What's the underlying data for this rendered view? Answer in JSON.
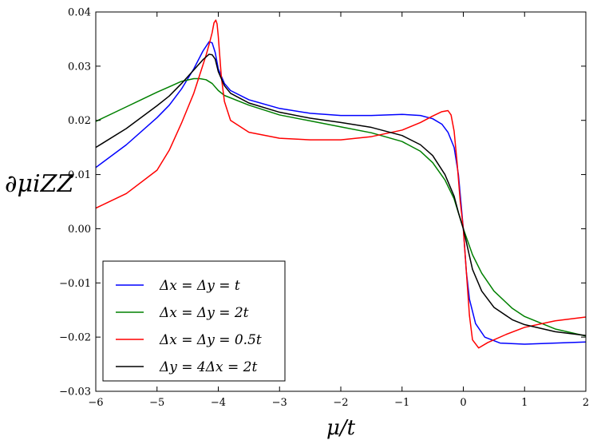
{
  "chart_data": {
    "type": "line",
    "xlabel": "μ/t",
    "ylabel": "∂μiZZ",
    "xlim": [
      -6,
      2
    ],
    "ylim": [
      -0.03,
      0.04
    ],
    "x_ticks": [
      -6,
      -5,
      -4,
      -3,
      -2,
      -1,
      0,
      1,
      2
    ],
    "x_tick_labels": [
      "−6",
      "−5",
      "−4",
      "−3",
      "−2",
      "−1",
      "0",
      "1",
      "2"
    ],
    "y_ticks": [
      -0.03,
      -0.02,
      -0.01,
      0.0,
      0.01,
      0.02,
      0.03,
      0.04
    ],
    "y_tick_labels": [
      "−0.03",
      "−0.02",
      "−0.01",
      "0.00",
      "0.01",
      "0.02",
      "0.03",
      "0.04"
    ],
    "grid": false,
    "legend_position": "bottom-left",
    "series": [
      {
        "name": "Δx = Δy = t",
        "color": "#0000ff",
        "x": [
          -6,
          -5.5,
          -5,
          -4.8,
          -4.6,
          -4.4,
          -4.25,
          -4.15,
          -4.1,
          -4.05,
          -4.0,
          -3.9,
          -3.8,
          -3.5,
          -3,
          -2.5,
          -2,
          -1.5,
          -1.0,
          -0.7,
          -0.5,
          -0.35,
          -0.25,
          -0.15,
          -0.08,
          0,
          0.05,
          0.1,
          0.2,
          0.35,
          0.6,
          1.0,
          1.5,
          2.0
        ],
        "y": [
          0.0113,
          0.0155,
          0.0205,
          0.0228,
          0.0258,
          0.0295,
          0.0328,
          0.0345,
          0.0343,
          0.0325,
          0.0295,
          0.0268,
          0.0255,
          0.0238,
          0.0222,
          0.0213,
          0.0209,
          0.0209,
          0.0211,
          0.0209,
          0.0203,
          0.0193,
          0.0178,
          0.015,
          0.01,
          0.0,
          -0.008,
          -0.013,
          -0.0175,
          -0.02,
          -0.0211,
          -0.0213,
          -0.0211,
          -0.0209
        ]
      },
      {
        "name": "Δx = Δy = 2t",
        "color": "#008000",
        "x": [
          -6,
          -5.5,
          -5,
          -4.8,
          -4.6,
          -4.4,
          -4.3,
          -4.2,
          -4.1,
          -4.0,
          -3.9,
          -3.5,
          -3,
          -2.5,
          -2,
          -1.5,
          -1.0,
          -0.7,
          -0.5,
          -0.3,
          -0.15,
          0,
          0.15,
          0.3,
          0.5,
          0.8,
          1.0,
          1.5,
          2.0
        ],
        "y": [
          0.0198,
          0.0225,
          0.0252,
          0.0262,
          0.0272,
          0.0277,
          0.0277,
          0.0275,
          0.0268,
          0.0255,
          0.0246,
          0.0228,
          0.021,
          0.0199,
          0.0188,
          0.0177,
          0.0161,
          0.0143,
          0.0122,
          0.009,
          0.0055,
          0.0,
          -0.0048,
          -0.0082,
          -0.0115,
          -0.0147,
          -0.0162,
          -0.0185,
          -0.0198
        ]
      },
      {
        "name": "Δx = Δy = 0.5t",
        "color": "#ff0000",
        "x": [
          -6,
          -5.5,
          -5,
          -4.8,
          -4.6,
          -4.4,
          -4.3,
          -4.2,
          -4.15,
          -4.1,
          -4.07,
          -4.04,
          -4.02,
          -4.0,
          -3.98,
          -3.95,
          -3.9,
          -3.8,
          -3.5,
          -3,
          -2.5,
          -2,
          -1.5,
          -1.0,
          -0.7,
          -0.5,
          -0.35,
          -0.25,
          -0.2,
          -0.15,
          -0.1,
          -0.05,
          0,
          0.05,
          0.1,
          0.15,
          0.25,
          0.4,
          0.7,
          1.0,
          1.5,
          2.0
        ],
        "y": [
          0.0038,
          0.0065,
          0.0108,
          0.0145,
          0.0195,
          0.025,
          0.0285,
          0.032,
          0.034,
          0.0362,
          0.038,
          0.0385,
          0.0378,
          0.0355,
          0.0325,
          0.028,
          0.0235,
          0.02,
          0.0178,
          0.0167,
          0.0164,
          0.0164,
          0.017,
          0.0182,
          0.0196,
          0.0208,
          0.0216,
          0.0218,
          0.021,
          0.018,
          0.012,
          0.005,
          0.0,
          -0.008,
          -0.016,
          -0.0205,
          -0.022,
          -0.021,
          -0.0195,
          -0.0182,
          -0.017,
          -0.0163
        ]
      },
      {
        "name": "Δy = 4Δx = 2t",
        "color": "#000000",
        "x": [
          -6,
          -5.5,
          -5,
          -4.8,
          -4.6,
          -4.4,
          -4.25,
          -4.15,
          -4.1,
          -4.05,
          -4.0,
          -3.9,
          -3.8,
          -3.5,
          -3,
          -2.5,
          -2,
          -1.5,
          -1.0,
          -0.7,
          -0.5,
          -0.3,
          -0.15,
          -0.08,
          0,
          0.08,
          0.15,
          0.3,
          0.5,
          0.8,
          1.0,
          1.5,
          2.0
        ],
        "y": [
          0.015,
          0.0185,
          0.0227,
          0.0245,
          0.0268,
          0.0293,
          0.0312,
          0.0322,
          0.0321,
          0.0313,
          0.029,
          0.0264,
          0.025,
          0.0232,
          0.0215,
          0.0204,
          0.0196,
          0.0187,
          0.0172,
          0.0155,
          0.0135,
          0.01,
          0.006,
          0.003,
          0.0,
          -0.004,
          -0.0075,
          -0.0115,
          -0.0145,
          -0.0168,
          -0.0177,
          -0.019,
          -0.0197
        ]
      }
    ]
  }
}
